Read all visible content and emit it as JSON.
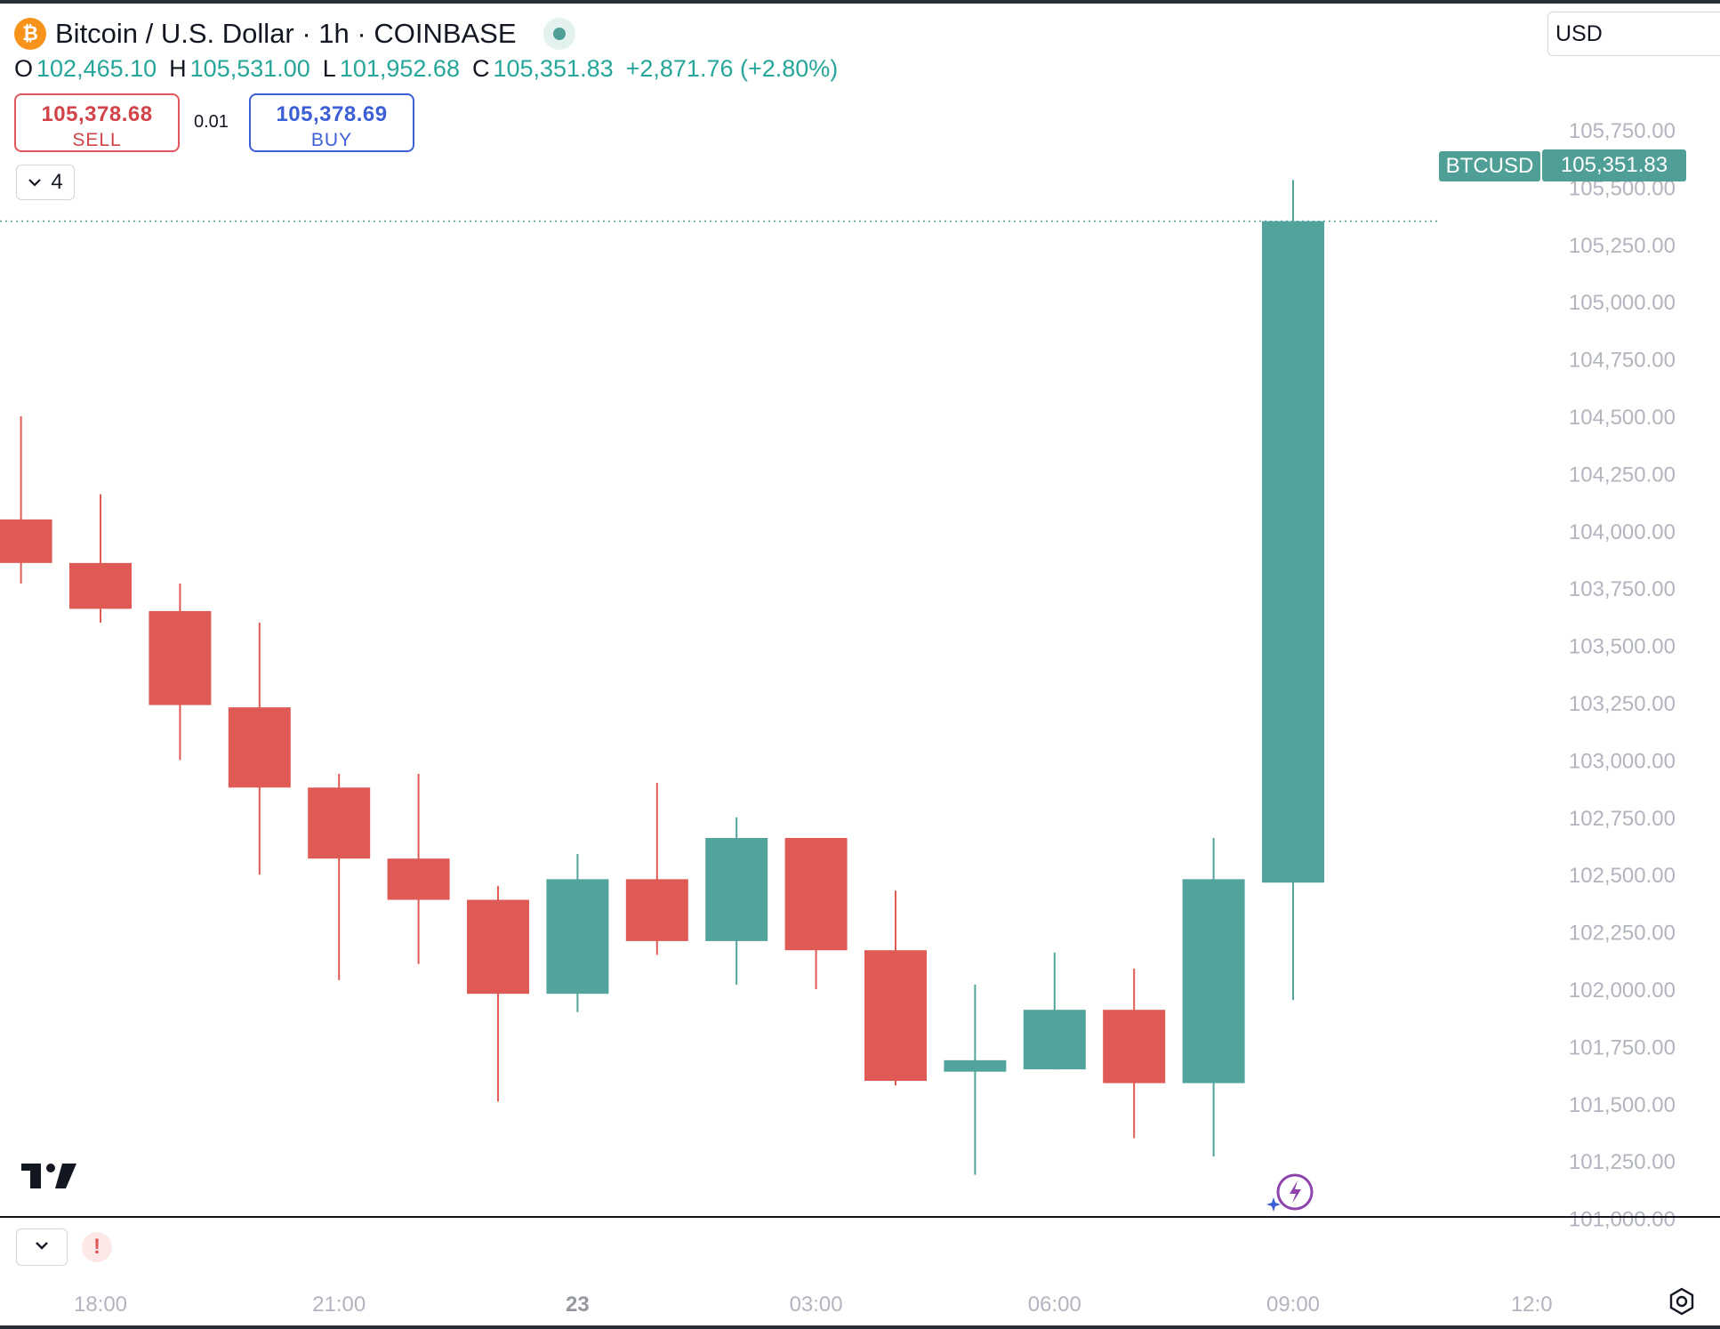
{
  "header": {
    "logo_glyph": "₿",
    "title": "Bitcoin / U.S. Dollar · 1h · COINBASE",
    "status_icon": "market-open-dot"
  },
  "ohlc": {
    "o_label": "O",
    "o_value": "102,465.10",
    "h_label": "H",
    "h_value": "105,531.00",
    "l_label": "L",
    "l_value": "101,952.68",
    "c_label": "C",
    "c_value": "105,351.83",
    "change": "+2,871.76 (+2.80%)"
  },
  "trade": {
    "sell_price": "105,378.68",
    "sell_label": "SELL",
    "spread": "0.01",
    "buy_price": "105,378.69",
    "buy_label": "BUY"
  },
  "indicators_toggle": {
    "count": "4"
  },
  "currency": {
    "value": "USD"
  },
  "price_tags": {
    "symbol": "BTCUSD",
    "last_price": "105,351.83"
  },
  "colors": {
    "up": "#52a39b",
    "down": "#e05a55",
    "tag": "#4f9f96",
    "axis_text": "#b2b5be"
  },
  "chart_data": {
    "type": "candlestick",
    "title": "Bitcoin / U.S. Dollar · 1h · COINBASE",
    "y_ticks": [
      "105,750.00",
      "105,500.00",
      "105,250.00",
      "105,000.00",
      "104,750.00",
      "104,500.00",
      "104,250.00",
      "104,000.00",
      "103,750.00",
      "103,500.00",
      "103,250.00",
      "103,000.00",
      "102,750.00",
      "102,500.00",
      "102,250.00",
      "102,000.00",
      "101,750.00",
      "101,500.00",
      "101,250.00",
      "101,000.00"
    ],
    "y_tick_values": [
      105750,
      105500,
      105250,
      105000,
      104750,
      104500,
      104250,
      104000,
      103750,
      103500,
      103250,
      103000,
      102750,
      102500,
      102250,
      102000,
      101750,
      101500,
      101250,
      101000
    ],
    "x_ticks": [
      "18:00",
      "21:00",
      "23",
      "03:00",
      "06:00",
      "09:00",
      "12:0"
    ],
    "x_tick_hours": [
      18,
      21,
      24,
      27,
      30,
      33,
      36
    ],
    "x_tick_bold": [
      false,
      false,
      true,
      false,
      false,
      false,
      false
    ],
    "candles": [
      {
        "hour": 17,
        "open": 104050,
        "high": 104500,
        "low": 103770,
        "close": 103860
      },
      {
        "hour": 18,
        "open": 103860,
        "high": 104160,
        "low": 103600,
        "close": 103660
      },
      {
        "hour": 19,
        "open": 103650,
        "high": 103770,
        "low": 103000,
        "close": 103240
      },
      {
        "hour": 20,
        "open": 103230,
        "high": 103600,
        "low": 102500,
        "close": 102880
      },
      {
        "hour": 21,
        "open": 102880,
        "high": 102940,
        "low": 102040,
        "close": 102570
      },
      {
        "hour": 22,
        "open": 102570,
        "high": 102940,
        "low": 102110,
        "close": 102390
      },
      {
        "hour": 23,
        "open": 102390,
        "high": 102450,
        "low": 101510,
        "close": 101980
      },
      {
        "hour": 24,
        "open": 101980,
        "high": 102590,
        "low": 101900,
        "close": 102480
      },
      {
        "hour": 25,
        "open": 102480,
        "high": 102900,
        "low": 102150,
        "close": 102210
      },
      {
        "hour": 26,
        "open": 102210,
        "high": 102750,
        "low": 102020,
        "close": 102660
      },
      {
        "hour": 27,
        "open": 102660,
        "high": 102660,
        "low": 102000,
        "close": 102170
      },
      {
        "hour": 28,
        "open": 102170,
        "high": 102430,
        "low": 101580,
        "close": 101600
      },
      {
        "hour": 29,
        "open": 101640,
        "high": 102020,
        "low": 101190,
        "close": 101690
      },
      {
        "hour": 30,
        "open": 101650,
        "high": 102160,
        "low": 101650,
        "close": 101910
      },
      {
        "hour": 31,
        "open": 101910,
        "high": 102090,
        "low": 101350,
        "close": 101590
      },
      {
        "hour": 32,
        "open": 101590,
        "high": 102660,
        "low": 101270,
        "close": 102480
      },
      {
        "hour": 33,
        "open": 102465.1,
        "high": 105531.0,
        "low": 101952.68,
        "close": 105351.83
      }
    ],
    "last_price": 105351.83,
    "legend": "none",
    "grid": false
  }
}
